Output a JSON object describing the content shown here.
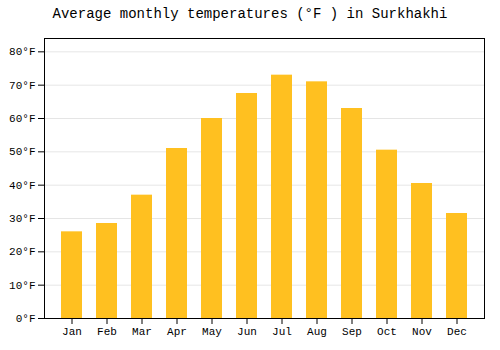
{
  "chart_data": {
    "type": "bar",
    "title": "Average monthly temperatures (°F ) in Surkhakhi",
    "categories": [
      "Jan",
      "Feb",
      "Mar",
      "Apr",
      "May",
      "Jun",
      "Jul",
      "Aug",
      "Sep",
      "Oct",
      "Nov",
      "Dec"
    ],
    "values": [
      26,
      28.5,
      37,
      51,
      60,
      67.5,
      73,
      71,
      63,
      50.5,
      40.5,
      31.5
    ],
    "color": "#FFC020",
    "ylim": [
      0,
      84
    ],
    "yticks": [
      {
        "value": 0,
        "label": "0°F"
      },
      {
        "value": 10,
        "label": "10°F"
      },
      {
        "value": 20,
        "label": "20°F"
      },
      {
        "value": 30,
        "label": "30°F"
      },
      {
        "value": 40,
        "label": "40°F"
      },
      {
        "value": 50,
        "label": "50°F"
      },
      {
        "value": 60,
        "label": "60°F"
      },
      {
        "value": 70,
        "label": "70°F"
      },
      {
        "value": 80,
        "label": "80°F"
      }
    ],
    "grid": true
  }
}
